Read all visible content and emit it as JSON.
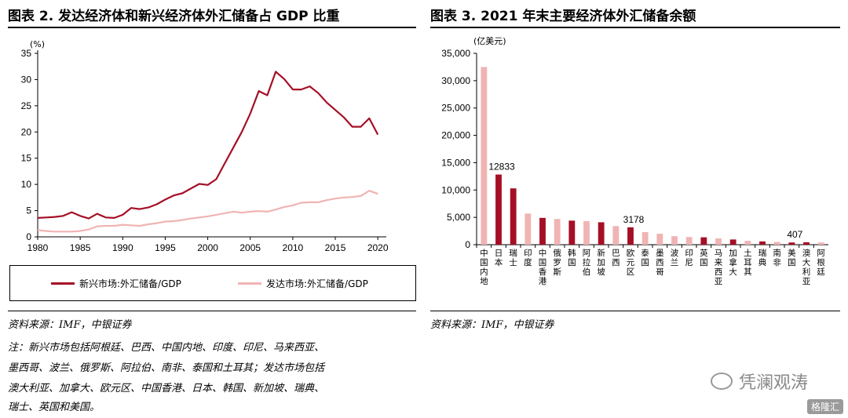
{
  "left_panel": {
    "title": "图表 2. 发达经济体和新兴经济体外汇储备占 GDP 比重",
    "source": "资料来源：IMF，中银证券",
    "note_lines": [
      "注：新兴市场包括阿根廷、巴西、中国内地、印度、印尼、马来西亚、",
      "墨西哥、波兰、俄罗斯、阿拉伯、南非、泰国和土耳其；发达市场包括",
      "澳大利亚、加拿大、欧元区、中国香港、日本、韩国、新加坡、瑞典、",
      "瑞士、英国和美国。"
    ]
  },
  "right_panel": {
    "title": "图表 3. 2021 年末主要经济体外汇储备余额",
    "source": "资料来源：IMF，中银证券"
  },
  "chart_data": [
    {
      "type": "line",
      "title": "图表 2. 发达经济体和新兴经济体外汇储备占 GDP 比重",
      "y_unit": "(%)",
      "ylim": [
        0,
        35
      ],
      "y_ticks": [
        0,
        5,
        10,
        15,
        20,
        25,
        30,
        35
      ],
      "x_ticks": [
        1980,
        1985,
        1990,
        1995,
        2000,
        2005,
        2010,
        2015,
        2020
      ],
      "xlim": [
        1980,
        2021
      ],
      "x": [
        1980,
        1981,
        1982,
        1983,
        1984,
        1985,
        1986,
        1987,
        1988,
        1989,
        1990,
        1991,
        1992,
        1993,
        1994,
        1995,
        1996,
        1997,
        1998,
        1999,
        2000,
        2001,
        2002,
        2003,
        2004,
        2005,
        2006,
        2007,
        2008,
        2009,
        2010,
        2011,
        2012,
        2013,
        2014,
        2015,
        2016,
        2017,
        2018,
        2019,
        2020,
        2021
      ],
      "series": [
        {
          "name": "新兴市场:外汇储备/GDP",
          "color": "#a50f26",
          "values": [
            3.6,
            3.7,
            3.8,
            4.0,
            4.7,
            4.0,
            3.5,
            4.4,
            3.7,
            3.6,
            4.2,
            5.5,
            5.3,
            5.6,
            6.2,
            7.1,
            7.9,
            8.3,
            9.2,
            10.1,
            9.9,
            11.0,
            14.0,
            17.0,
            20.0,
            23.5,
            27.8,
            27.0,
            31.5,
            30.1,
            28.1,
            28.1,
            28.7,
            27.4,
            25.6,
            24.2,
            22.8,
            21.0,
            21.0,
            22.6,
            19.5,
            null
          ]
        },
        {
          "name": "发达市场:外汇储备/GDP",
          "color": "#f0b4b4",
          "values": [
            1.3,
            1.1,
            1.0,
            1.0,
            1.0,
            1.1,
            1.4,
            2.0,
            2.1,
            2.1,
            2.3,
            2.2,
            2.1,
            2.4,
            2.6,
            2.9,
            3.0,
            3.2,
            3.5,
            3.7,
            3.9,
            4.2,
            4.5,
            4.8,
            4.6,
            4.8,
            4.9,
            4.8,
            5.2,
            5.7,
            6.0,
            6.5,
            6.6,
            6.6,
            7.0,
            7.3,
            7.5,
            7.6,
            7.8,
            8.8,
            8.2,
            null
          ]
        }
      ]
    },
    {
      "type": "bar",
      "title": "图表 3. 2021 年末主要经济体外汇储备余额",
      "y_unit": "(亿美元)",
      "ylim": [
        0,
        35000
      ],
      "y_ticks": [
        0,
        5000,
        10000,
        15000,
        20000,
        25000,
        30000,
        35000
      ],
      "y_tick_labels": [
        "0",
        "5,000",
        "10,000",
        "15,000",
        "20,000",
        "25,000",
        "30,000",
        "35,000"
      ],
      "categories": [
        "中国内地",
        "日本",
        "瑞士",
        "印度",
        "中国香港",
        "俄罗斯",
        "韩国",
        "阿拉伯",
        "新加坡",
        "巴西",
        "欧元区",
        "泰国",
        "墨西哥",
        "波兰",
        "印尼",
        "英国",
        "马来西亚",
        "加拿大",
        "土耳其",
        "瑞典",
        "南非",
        "美国",
        "澳大利亚",
        "阿根廷"
      ],
      "values": [
        32500,
        12833,
        10300,
        5700,
        4900,
        4700,
        4400,
        4300,
        4100,
        3400,
        3178,
        2300,
        2000,
        1550,
        1400,
        1350,
        1150,
        950,
        700,
        600,
        500,
        407,
        450,
        400
      ],
      "colors": [
        "light",
        "dark",
        "dark",
        "light",
        "dark",
        "light",
        "dark",
        "light",
        "dark",
        "light",
        "dark",
        "light",
        "light",
        "light",
        "light",
        "dark",
        "light",
        "dark",
        "light",
        "dark",
        "light",
        "dark",
        "dark",
        "light"
      ],
      "data_labels": {
        "1": "12833",
        "10": "3178",
        "21": "407"
      },
      "dark_color": "#a50f26",
      "light_color": "#f0b4b4"
    }
  ],
  "watermark": "凭澜观涛",
  "corner_logo": "格隆汇"
}
